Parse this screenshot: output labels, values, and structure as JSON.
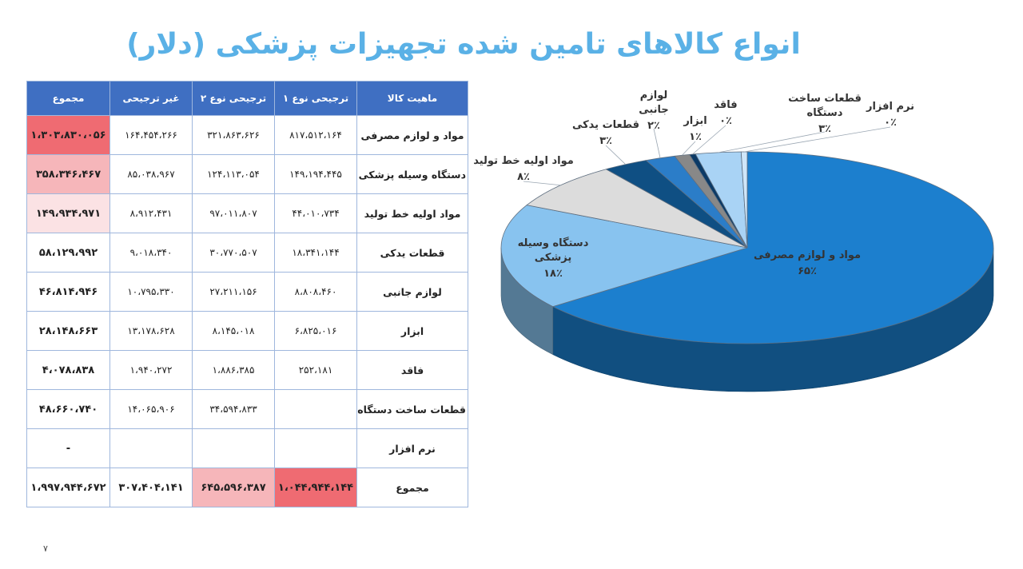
{
  "title": "انواع کالاهای تامین شده تجهیزات پزشکی (دلار)",
  "page_number": "۷",
  "colors": {
    "header_bg": "#3f6fc2",
    "highlight_strong": "#ef6b72",
    "highlight_medium": "#f6b6ba",
    "highlight_light": "#fbe2e4"
  },
  "table": {
    "headers": [
      "ماهیت کالا",
      "ترجیحی نوع ۱",
      "ترجیحی نوع ۲",
      "غیر ترجیحی",
      "مجموع"
    ],
    "rows": [
      {
        "name": "مواد و لوازم مصرفی",
        "pref1": "۸۱۷،۵۱۲،۱۶۴",
        "pref2": "۳۲۱،۸۶۳،۶۲۶",
        "nonpref": "۱۶۴،۴۵۴،۲۶۶",
        "total": "۱،۳۰۳،۸۳۰،۰۵۶",
        "highlight": "#ef6b72"
      },
      {
        "name": "دستگاه وسیله پزشکی",
        "pref1": "۱۴۹،۱۹۴،۴۴۵",
        "pref2": "۱۲۴،۱۱۳،۰۵۴",
        "nonpref": "۸۵،۰۳۸،۹۶۷",
        "total": "۳۵۸،۳۴۶،۴۶۷",
        "highlight": "#f6b6ba"
      },
      {
        "name": "مواد اولیه خط تولید",
        "pref1": "۴۴،۰۱۰،۷۳۴",
        "pref2": "۹۷،۰۱۱،۸۰۷",
        "nonpref": "۸،۹۱۲،۴۳۱",
        "total": "۱۴۹،۹۳۴،۹۷۱",
        "highlight": "#fbe2e4"
      },
      {
        "name": "قطعات یدکی",
        "pref1": "۱۸،۳۴۱،۱۴۴",
        "pref2": "۳۰،۷۷۰،۵۰۷",
        "nonpref": "۹،۰۱۸،۳۴۰",
        "total": "۵۸،۱۲۹،۹۹۲",
        "highlight": ""
      },
      {
        "name": "لوازم جانبی",
        "pref1": "۸،۸۰۸،۴۶۰",
        "pref2": "۲۷،۲۱۱،۱۵۶",
        "nonpref": "۱۰،۷۹۵،۳۳۰",
        "total": "۴۶،۸۱۴،۹۴۶",
        "highlight": ""
      },
      {
        "name": "ابزار",
        "pref1": "۶،۸۲۵،۰۱۶",
        "pref2": "۸،۱۴۵،۰۱۸",
        "nonpref": "۱۳،۱۷۸،۶۲۸",
        "total": "۲۸،۱۴۸،۶۶۳",
        "highlight": ""
      },
      {
        "name": "فاقد",
        "pref1": "۲۵۲،۱۸۱",
        "pref2": "۱،۸۸۶،۳۸۵",
        "nonpref": "۱،۹۴۰،۲۷۲",
        "total": "۴،۰۷۸،۸۳۸",
        "highlight": ""
      },
      {
        "name": "قطعات ساخت دستگاه",
        "pref1": "",
        "pref2": "۳۴،۵۹۴،۸۳۳",
        "nonpref": "۱۴،۰۶۵،۹۰۶",
        "total": "۴۸،۶۶۰،۷۴۰",
        "highlight": ""
      },
      {
        "name": "نرم افزار",
        "pref1": "",
        "pref2": "",
        "nonpref": "",
        "total": "-",
        "highlight": ""
      }
    ],
    "totals": {
      "name": "مجموع",
      "pref1": "۱،۰۴۴،۹۴۴،۱۴۴",
      "pref2": "۶۴۵،۵۹۶،۳۸۷",
      "nonpref": "۳۰۷،۴۰۴،۱۴۱",
      "total": "۱،۹۹۷،۹۴۴،۶۷۲",
      "pref1_highlight": "#ef6b72",
      "pref2_highlight": "#f6b6ba"
    }
  },
  "chart_data": {
    "type": "pie",
    "title": "",
    "slices": [
      {
        "label": "مواد و لوازم مصرفی",
        "value": 65,
        "pct_label": "۶۵٪",
        "color": "#1c7fce"
      },
      {
        "label": "دستگاه وسیله پزشکی",
        "value": 18,
        "pct_label": "۱۸٪",
        "color": "#88c3ef"
      },
      {
        "label": "مواد اولیه خط تولید",
        "value": 8,
        "pct_label": "۸٪",
        "color": "#dcdcdc"
      },
      {
        "label": "قطعات یدکی",
        "value": 3,
        "pct_label": "۳٪",
        "color": "#0f4f83"
      },
      {
        "label": "لوازم جانبی",
        "value": 2,
        "pct_label": "۲٪",
        "color": "#2b7dc8"
      },
      {
        "label": "ابزار",
        "value": 1,
        "pct_label": "۱٪",
        "color": "#888888"
      },
      {
        "label": "فاقد",
        "value": 0,
        "pct_label": "۰٪",
        "color": "#0b3a66"
      },
      {
        "label": "قطعات ساخت دستگاه",
        "value": 3,
        "pct_label": "۳٪",
        "color": "#a9d3f5"
      },
      {
        "label": "نرم افزار",
        "value": 0,
        "pct_label": "۰٪",
        "color": "#cfe6f9"
      }
    ]
  }
}
